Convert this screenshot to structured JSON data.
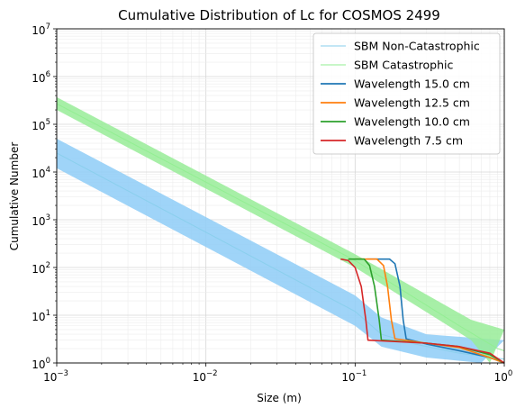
{
  "chart_data": {
    "type": "line",
    "title": "Cumulative Distribution of Lc for COSMOS 2499",
    "xlabel": "Size (m)",
    "ylabel": "Cumulative Number",
    "xscale": "log",
    "yscale": "log",
    "xlim": [
      0.001,
      1
    ],
    "ylim": [
      1,
      10000000
    ],
    "grid": true,
    "legend_position": "top-right",
    "x_ticks": [
      {
        "value": 0.001,
        "base": "10",
        "exp": "−3"
      },
      {
        "value": 0.01,
        "base": "10",
        "exp": "−2"
      },
      {
        "value": 0.1,
        "base": "10",
        "exp": "−1"
      },
      {
        "value": 1,
        "base": "10",
        "exp": "0"
      }
    ],
    "y_ticks": [
      {
        "value": 1,
        "base": "10",
        "exp": "0"
      },
      {
        "value": 10,
        "base": "10",
        "exp": "1"
      },
      {
        "value": 100,
        "base": "10",
        "exp": "2"
      },
      {
        "value": 1000,
        "base": "10",
        "exp": "3"
      },
      {
        "value": 10000,
        "base": "10",
        "exp": "4"
      },
      {
        "value": 100000,
        "base": "10",
        "exp": "5"
      },
      {
        "value": 1000000,
        "base": "10",
        "exp": "6"
      },
      {
        "value": 10000000,
        "base": "10",
        "exp": "7"
      }
    ],
    "bands": [
      {
        "name": "SBM Non-Catastrophic",
        "color": "#87ceeb",
        "fill_color": "#8ecdf7",
        "upper": [
          [
            0.001,
            50000
          ],
          [
            0.1,
            26
          ],
          [
            0.15,
            9
          ],
          [
            0.3,
            4
          ],
          [
            1,
            3
          ]
        ],
        "lower": [
          [
            0.001,
            12000
          ],
          [
            0.1,
            6
          ],
          [
            0.15,
            2.2
          ],
          [
            0.3,
            1.3
          ],
          [
            0.7,
            1
          ]
        ],
        "median": [
          [
            0.001,
            25000
          ],
          [
            0.1,
            12
          ],
          [
            0.15,
            4
          ],
          [
            0.25,
            2.5
          ],
          [
            0.5,
            1.6
          ],
          [
            1,
            1.2
          ]
        ]
      },
      {
        "name": "SBM Catastrophic",
        "color": "#90ee90",
        "fill_color": "#98ec98",
        "upper": [
          [
            0.001,
            370000
          ],
          [
            0.1,
            190
          ],
          [
            0.6,
            8
          ],
          [
            1,
            5
          ]
        ],
        "lower": [
          [
            0.001,
            200000
          ],
          [
            0.1,
            100
          ],
          [
            0.6,
            3
          ],
          [
            0.8,
            1
          ]
        ],
        "median": [
          [
            0.001,
            270000
          ],
          [
            0.1,
            140
          ],
          [
            0.5,
            6
          ],
          [
            0.9,
            2
          ],
          [
            1,
            1.8
          ]
        ]
      }
    ],
    "series": [
      {
        "name": "Wavelength 15.0 cm",
        "color": "#1f77b4",
        "points": [
          [
            0.12,
            150
          ],
          [
            0.17,
            150
          ],
          [
            0.185,
            120
          ],
          [
            0.2,
            40
          ],
          [
            0.21,
            8
          ],
          [
            0.22,
            3.2
          ],
          [
            0.3,
            2.5
          ],
          [
            0.5,
            1.8
          ],
          [
            0.8,
            1.3
          ],
          [
            1,
            1
          ]
        ]
      },
      {
        "name": "Wavelength 12.5 cm",
        "color": "#ff7f0e",
        "points": [
          [
            0.1,
            150
          ],
          [
            0.14,
            150
          ],
          [
            0.155,
            110
          ],
          [
            0.165,
            40
          ],
          [
            0.175,
            8
          ],
          [
            0.185,
            3.2
          ],
          [
            0.3,
            2.6
          ],
          [
            0.5,
            2.1
          ],
          [
            0.8,
            1.3
          ],
          [
            1,
            1
          ]
        ]
      },
      {
        "name": "Wavelength 10.0 cm",
        "color": "#2ca02c",
        "points": [
          [
            0.09,
            150
          ],
          [
            0.115,
            150
          ],
          [
            0.125,
            110
          ],
          [
            0.135,
            40
          ],
          [
            0.145,
            8
          ],
          [
            0.15,
            3
          ],
          [
            0.3,
            2.6
          ],
          [
            0.5,
            2.2
          ],
          [
            0.8,
            1.5
          ],
          [
            1,
            1
          ]
        ]
      },
      {
        "name": "Wavelength 7.5 cm",
        "color": "#d62728",
        "points": [
          [
            0.08,
            150
          ],
          [
            0.09,
            140
          ],
          [
            0.1,
            100
          ],
          [
            0.11,
            40
          ],
          [
            0.118,
            8
          ],
          [
            0.122,
            3
          ],
          [
            0.3,
            2.6
          ],
          [
            0.5,
            2.2
          ],
          [
            0.8,
            1.6
          ],
          [
            1,
            1
          ]
        ]
      }
    ]
  }
}
